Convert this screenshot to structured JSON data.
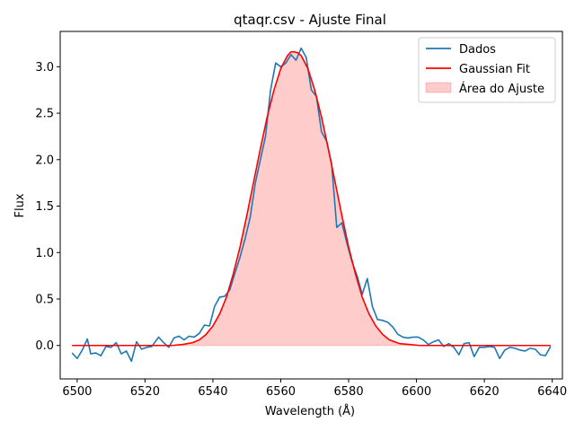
{
  "chart_data": {
    "type": "line",
    "title": "qtaqr.csv - Ajuste Final",
    "xlabel": "Wavelength (Å)",
    "ylabel": "Flux",
    "xlim": [
      6495,
      6643
    ],
    "ylim": [
      -0.36,
      3.38
    ],
    "xticks": [
      6500,
      6520,
      6540,
      6560,
      6580,
      6600,
      6620,
      6640
    ],
    "yticks": [
      0.0,
      0.5,
      1.0,
      1.5,
      2.0,
      2.5,
      3.0
    ],
    "grid": false,
    "legend_position": "top-right",
    "colors": {
      "data": "#1f77b4",
      "fit": "#ff0000",
      "area_fill": "#ff0000"
    },
    "series": [
      {
        "name": "Dados",
        "style": "line",
        "x": [
          6498.5,
          6500,
          6501.5,
          6503,
          6504,
          6505.5,
          6507,
          6508.5,
          6510,
          6511.5,
          6513,
          6514.5,
          6516,
          6517.5,
          6519,
          6520.5,
          6522,
          6524,
          6525.5,
          6527,
          6528.5,
          6530,
          6531.5,
          6533,
          6534.5,
          6536,
          6537.5,
          6539,
          6540.5,
          6542,
          6543.5,
          6545,
          6546.5,
          6548,
          6549.5,
          6551,
          6552.5,
          6554,
          6555.5,
          6557,
          6558.5,
          6560,
          6561.5,
          6563,
          6564.5,
          6566,
          6567.5,
          6569,
          6570.5,
          6572,
          6573.5,
          6575,
          6576.5,
          6578,
          6579.5,
          6581,
          6582.5,
          6584,
          6585.5,
          6587,
          6588.5,
          6590,
          6591.5,
          6593,
          6594.5,
          6596,
          6597.5,
          6599,
          6600.5,
          6602,
          6603.5,
          6605,
          6606.5,
          6608,
          6609.5,
          6611,
          6612.5,
          6614,
          6615.5,
          6617,
          6618.5,
          6620,
          6621.5,
          6623,
          6624.5,
          6626,
          6627.5,
          6629,
          6630.5,
          6632,
          6633.5,
          6635,
          6636.5,
          6638,
          6639.5
        ],
        "y": [
          -0.08,
          -0.14,
          -0.05,
          0.07,
          -0.09,
          -0.08,
          -0.11,
          -0.01,
          -0.02,
          0.03,
          -0.09,
          -0.06,
          -0.17,
          0.04,
          -0.04,
          -0.02,
          -0.01,
          0.09,
          0.03,
          -0.02,
          0.08,
          0.1,
          0.06,
          0.1,
          0.09,
          0.13,
          0.22,
          0.21,
          0.42,
          0.52,
          0.53,
          0.6,
          0.78,
          0.95,
          1.15,
          1.38,
          1.75,
          2.0,
          2.25,
          2.75,
          3.04,
          3.0,
          3.04,
          3.13,
          3.07,
          3.2,
          3.1,
          2.75,
          2.68,
          2.3,
          2.2,
          1.95,
          1.27,
          1.32,
          1.1,
          0.9,
          0.75,
          0.55,
          0.72,
          0.42,
          0.28,
          0.27,
          0.25,
          0.2,
          0.12,
          0.09,
          0.08,
          0.09,
          0.09,
          0.06,
          0.01,
          0.04,
          0.06,
          -0.01,
          0.02,
          -0.02,
          -0.1,
          0.02,
          0.03,
          -0.12,
          -0.02,
          -0.02,
          -0.01,
          -0.02,
          -0.14,
          -0.05,
          -0.02,
          -0.03,
          -0.05,
          -0.06,
          -0.03,
          -0.04,
          -0.1,
          -0.11,
          -0.01
        ]
      },
      {
        "name": "Gaussian Fit",
        "style": "line",
        "x": [
          6498.5,
          6501,
          6504,
          6507,
          6510,
          6513,
          6516,
          6519,
          6522,
          6525,
          6528,
          6531,
          6534,
          6536,
          6538,
          6540,
          6542,
          6544,
          6546,
          6548,
          6550,
          6552,
          6554,
          6556,
          6558,
          6560,
          6562,
          6563,
          6564,
          6565,
          6566,
          6568,
          6570,
          6572,
          6574,
          6576,
          6578,
          6580,
          6582,
          6584,
          6586,
          6588,
          6590,
          6592,
          6595,
          6598,
          6601,
          6604,
          6607,
          6610,
          6614,
          6618,
          6622,
          6626,
          6630,
          6634,
          6639.5
        ],
        "y": [
          0.0,
          0.0,
          0.0,
          0.0,
          0.0,
          0.0,
          0.0,
          0.0,
          0.0,
          0.0,
          0.0,
          0.01,
          0.03,
          0.06,
          0.12,
          0.21,
          0.34,
          0.52,
          0.77,
          1.06,
          1.4,
          1.76,
          2.12,
          2.46,
          2.75,
          2.98,
          3.12,
          3.16,
          3.16,
          3.15,
          3.12,
          2.98,
          2.75,
          2.46,
          2.12,
          1.76,
          1.4,
          1.06,
          0.77,
          0.52,
          0.34,
          0.21,
          0.12,
          0.06,
          0.02,
          0.01,
          0.0,
          0.0,
          0.0,
          0.0,
          0.0,
          0.0,
          0.0,
          0.0,
          0.0,
          0.0,
          0.0
        ]
      }
    ],
    "area": {
      "name": "Área do Ajuste",
      "source_series": "Gaussian Fit",
      "baseline": 0
    },
    "legend": [
      "Dados",
      "Gaussian Fit",
      "Área do Ajuste"
    ]
  }
}
